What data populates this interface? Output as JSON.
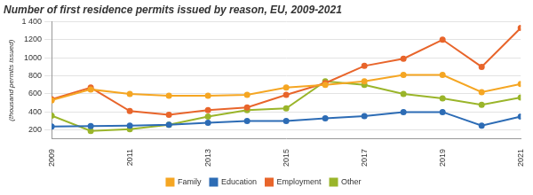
{
  "chart_data": {
    "type": "line",
    "title": "Number of first residence permits issued by reason, EU, 2009-2021",
    "y_label": "(thousand permits issued)",
    "categories": [
      "2009",
      null,
      "2011",
      null,
      "2013",
      null,
      "2015",
      null,
      "2017",
      null,
      "2019",
      null,
      "2021"
    ],
    "series": [
      {
        "name": "Family",
        "color": "#f5a623",
        "values": [
          530,
          650,
          600,
          580,
          580,
          590,
          670,
          700,
          740,
          810,
          810,
          620,
          710
        ]
      },
      {
        "name": "Education",
        "color": "#2d6cb5",
        "values": [
          240,
          245,
          250,
          260,
          280,
          300,
          300,
          330,
          355,
          400,
          400,
          250,
          350
        ]
      },
      {
        "name": "Employment",
        "color": "#e8652b",
        "values": [
          540,
          670,
          410,
          370,
          420,
          450,
          590,
          720,
          910,
          990,
          1200,
          900,
          1330
        ]
      },
      {
        "name": "Other",
        "color": "#9ab52a",
        "values": [
          360,
          190,
          210,
          260,
          350,
          420,
          440,
          740,
          700,
          600,
          550,
          480,
          560
        ]
      }
    ],
    "ylim": [
      100,
      1400
    ],
    "yticks": [
      200,
      400,
      600,
      800,
      1000,
      1200,
      {
        "value": 1400,
        "label": "1 400"
      }
    ],
    "grid": true,
    "legend": "bottom",
    "marker": "circle",
    "line_style": "solid"
  }
}
